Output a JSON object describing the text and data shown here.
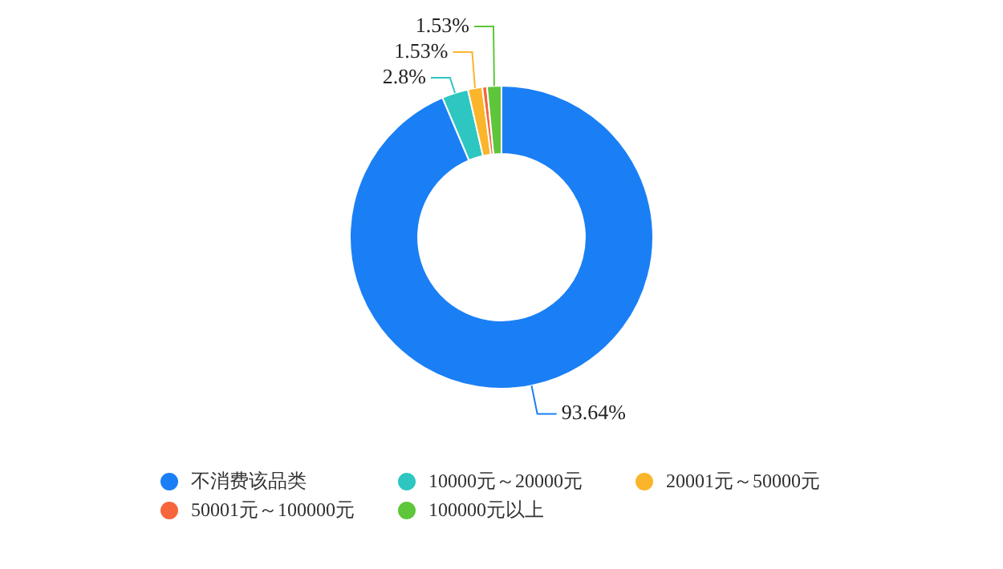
{
  "chart_data": {
    "type": "donut",
    "categories": [
      "不消费该品类",
      "10000元～20000元",
      "20001元～50000元",
      "50001元～100000元",
      "100000元以上"
    ],
    "values": [
      93.64,
      2.8,
      1.53,
      0.5,
      1.53
    ],
    "value_labels": [
      "93.64%",
      "2.8%",
      "1.53%",
      null,
      "1.53%"
    ],
    "colors": [
      "#1a7ff5",
      "#2ec6c0",
      "#fbb52b",
      "#f6653c",
      "#5ec63a"
    ],
    "legend": "bottom"
  }
}
